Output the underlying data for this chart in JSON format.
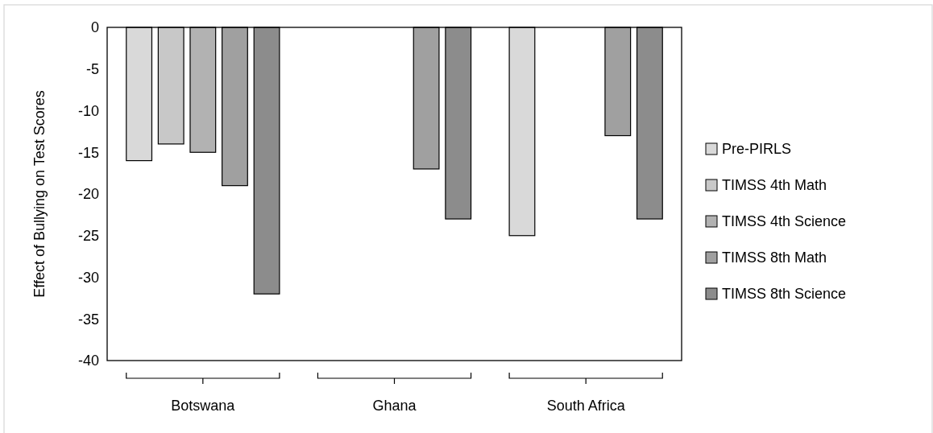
{
  "chart_data": {
    "type": "bar",
    "ylabel": "Effect of Bullying on Test Scores",
    "categories": [
      "Botswana",
      "Ghana",
      "South Africa"
    ],
    "series": [
      {
        "name": "Pre-PIRLS",
        "color": "#d9d9d9",
        "values": [
          -16,
          null,
          -25
        ]
      },
      {
        "name": "TIMSS 4th Math",
        "color": "#c8c8c8",
        "values": [
          -14,
          null,
          null
        ]
      },
      {
        "name": "TIMSS 4th Science",
        "color": "#b2b2b2",
        "values": [
          -15,
          null,
          null
        ]
      },
      {
        "name": "TIMSS 8th Math",
        "color": "#a0a0a0",
        "values": [
          -19,
          -17,
          -13
        ]
      },
      {
        "name": "TIMSS 8th Science",
        "color": "#8c8c8c",
        "values": [
          -32,
          -23,
          -23
        ]
      }
    ],
    "ylim": [
      -40,
      0
    ],
    "yticks": [
      -40,
      -35,
      -30,
      -25,
      -20,
      -15,
      -10,
      -5,
      0
    ],
    "grid": false,
    "legend": "right"
  }
}
